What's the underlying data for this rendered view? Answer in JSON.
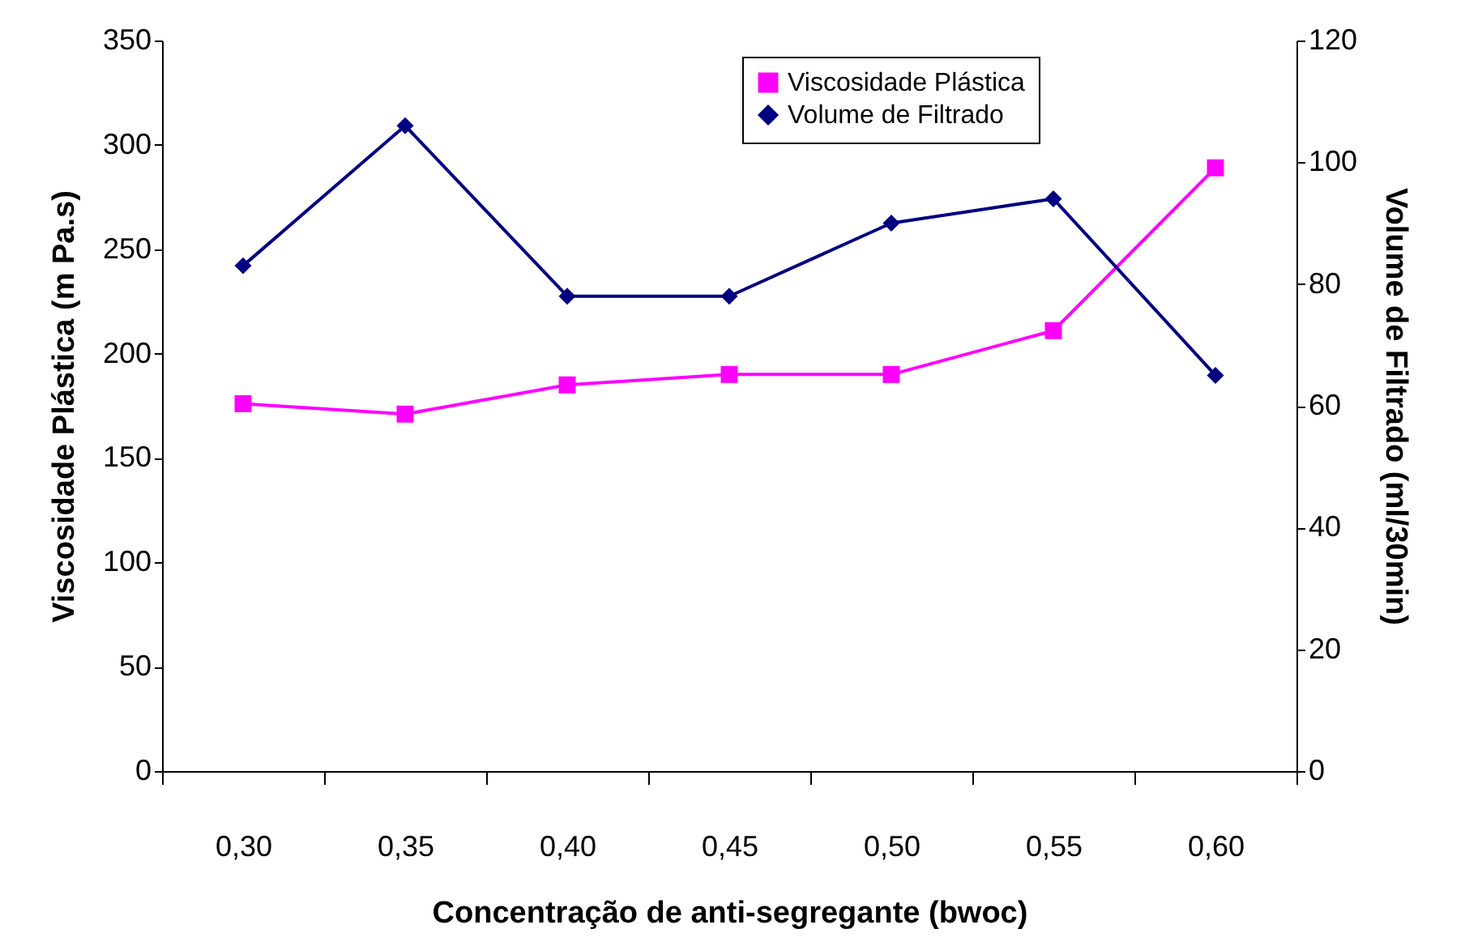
{
  "chart_data": {
    "type": "line",
    "xlabel": "Concentração de anti-segregante (bwoc)",
    "ylabel": "Viscosidade Plástica (m Pa.s)",
    "y2label": "Volume de Filtrado (ml/30min)",
    "categories": [
      "0,30",
      "0,35",
      "0,40",
      "0,45",
      "0,50",
      "0,55",
      "0,60"
    ],
    "series": [
      {
        "name": "Viscosidade Plástica",
        "color": "#ff00ff",
        "marker": "square",
        "values": [
          176,
          171,
          185,
          190,
          190,
          211,
          289
        ]
      },
      {
        "name": "Volume de Filtrado",
        "color": "#000080",
        "marker": "diamond",
        "axis": "y2",
        "values": [
          83,
          106,
          78,
          78,
          90,
          94,
          65
        ]
      }
    ],
    "ylim": [
      0,
      350
    ],
    "yticks": [
      0,
      50,
      100,
      150,
      200,
      250,
      300,
      350
    ],
    "y2lim": [
      0,
      120
    ],
    "y2ticks": [
      0,
      20,
      40,
      60,
      80,
      100,
      120
    ],
    "grid": false,
    "legend": "top right",
    "line_style": "solid"
  }
}
